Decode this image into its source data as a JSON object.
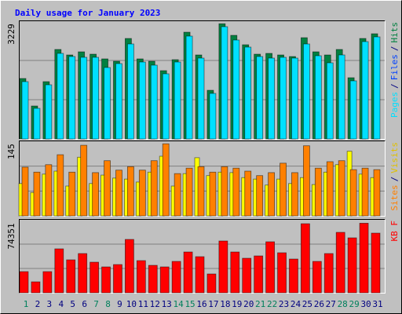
{
  "title": "Daily usage for January 2023",
  "chart_data": [
    {
      "type": "bar",
      "ylim": [
        0,
        3300
      ],
      "yticks": [
        3229
      ],
      "series": [
        {
          "name": "Hits",
          "color": "#008040",
          "values": [
            1694,
            924,
            1606,
            2508,
            2354,
            2442,
            2376,
            2244,
            2178,
            2816,
            2244,
            2178,
            1914,
            2222,
            2992,
            2354,
            1364,
            3229,
            2904,
            2640,
            2376,
            2398,
            2354,
            2310,
            2838,
            2442,
            2354,
            2508,
            1716,
            2816,
            2948
          ]
        },
        {
          "name": "Pages",
          "color": "#00e0ff",
          "values": [
            1606,
            858,
            1518,
            2398,
            2310,
            2288,
            2288,
            2002,
            2112,
            2662,
            2156,
            2068,
            1826,
            2156,
            2882,
            2266,
            1276,
            3146,
            2772,
            2574,
            2310,
            2266,
            2288,
            2266,
            2662,
            2332,
            2134,
            2354,
            1628,
            2728,
            2860
          ]
        }
      ],
      "legend_extra": {
        "text": "Files",
        "color": "#0040ff"
      },
      "legend_separator": "/"
    },
    {
      "type": "bar",
      "ylim": [
        0,
        150
      ],
      "yticks": [
        145
      ],
      "series": [
        {
          "name": "Visits",
          "color": "#ffff00",
          "values": [
            65,
            47,
            84,
            90,
            60,
            118,
            65,
            82,
            76,
            74,
            68,
            88,
            120,
            60,
            85,
            117,
            81,
            88,
            87,
            77,
            74,
            62,
            74,
            65,
            77,
            63,
            88,
            103,
            130,
            84,
            77
          ]
        },
        {
          "name": "Sites",
          "color": "#ff8000",
          "values": [
            98,
            88,
            103,
            123,
            88,
            142,
            87,
            111,
            92,
            99,
            92,
            111,
            145,
            85,
            96,
            99,
            88,
            99,
            96,
            90,
            81,
            87,
            106,
            87,
            141,
            96,
            109,
            111,
            93,
            96,
            93
          ]
        }
      ],
      "legend_separator": "/"
    },
    {
      "type": "bar",
      "ylim": [
        0,
        78000
      ],
      "yticks": [
        74351
      ],
      "categories": [
        "1",
        "2",
        "3",
        "4",
        "5",
        "6",
        "7",
        "8",
        "9",
        "10",
        "11",
        "12",
        "13",
        "14",
        "15",
        "16",
        "17",
        "18",
        "19",
        "20",
        "21",
        "22",
        "23",
        "24",
        "25",
        "26",
        "27",
        "28",
        "29",
        "30",
        "31"
      ],
      "category_colors": [
        "#00805c",
        "#000080",
        "#000080",
        "#000080",
        "#000080",
        "#000080",
        "#00805c",
        "#00805c",
        "#000080",
        "#000080",
        "#000080",
        "#000080",
        "#000080",
        "#00805c",
        "#00805c",
        "#000080",
        "#000080",
        "#000080",
        "#000080",
        "#000080",
        "#00805c",
        "#00805c",
        "#000080",
        "#000080",
        "#000080",
        "#000080",
        "#000080",
        "#00805c",
        "#00805c",
        "#000080",
        "#000080"
      ],
      "series": [
        {
          "name": "KB F",
          "color": "#ff0000",
          "values": [
            22650,
            11740,
            22650,
            46980,
            35240,
            41950,
            32720,
            27690,
            30200,
            57050,
            34400,
            29360,
            27690,
            33560,
            43630,
            38590,
            20140,
            55370,
            43630,
            36920,
            39430,
            54530,
            42790,
            36080,
            73830,
            33560,
            41950,
            64600,
            58730,
            74351,
            63760
          ]
        }
      ]
    }
  ]
}
